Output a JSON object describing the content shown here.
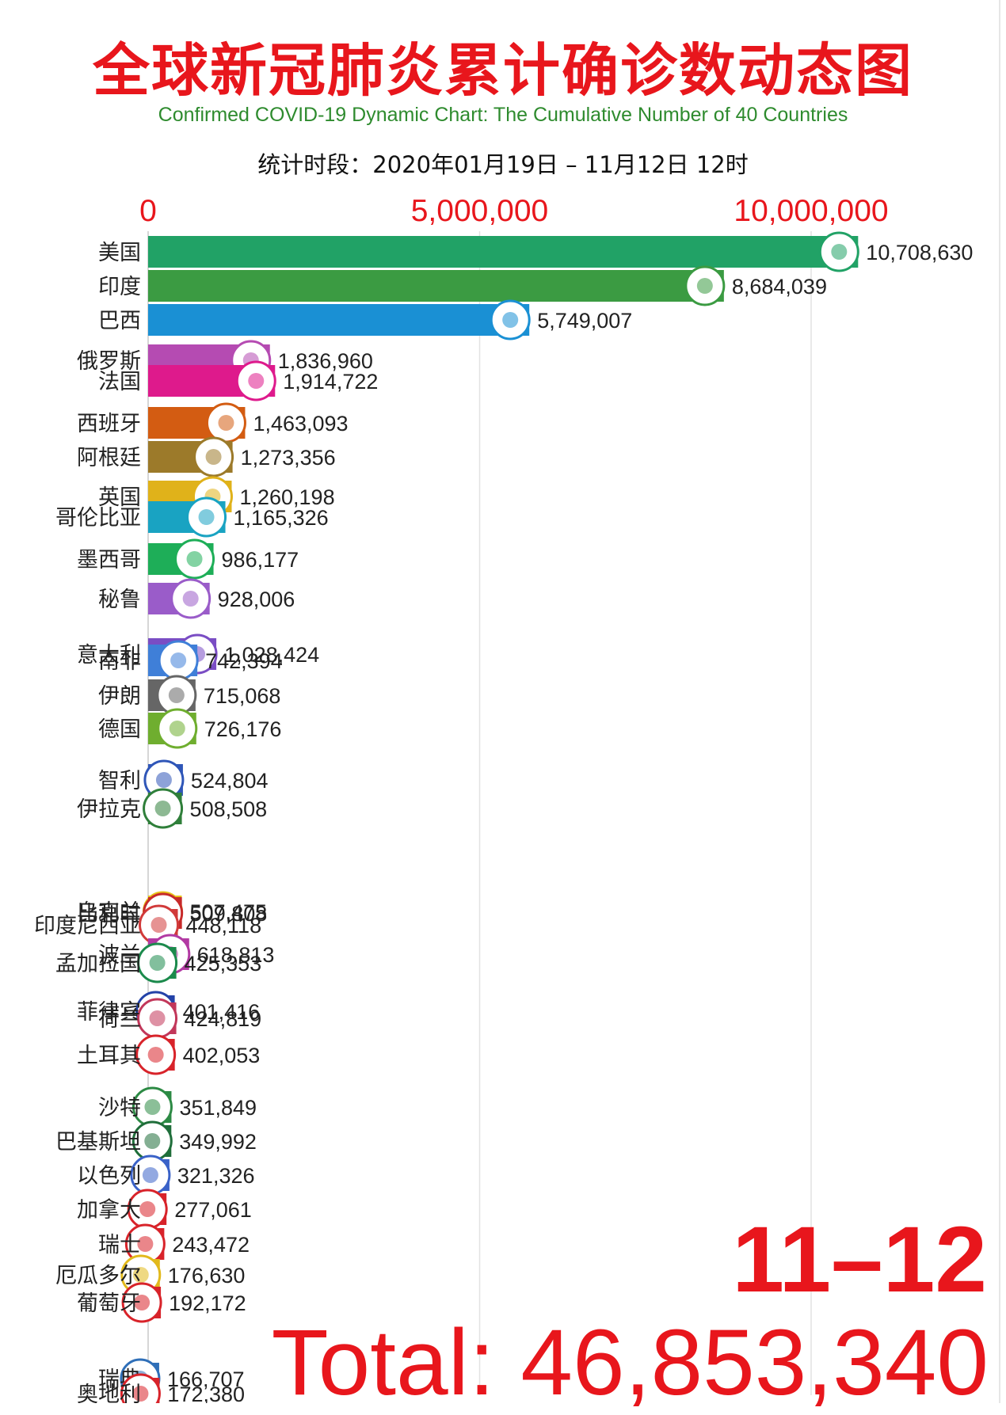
{
  "header": {
    "title": "全球新冠肺炎累计确诊数动态图",
    "subtitle": "Confirmed COVID-19 Dynamic Chart: The Cumulative Number of 40 Countries",
    "period": "统计时段：2020年01月19日 – 11月12日 12时"
  },
  "overlay": {
    "date": "11–12",
    "total": "Total: 46,853,340"
  },
  "chart_data": {
    "type": "bar",
    "orientation": "horizontal",
    "xlim": [
      0,
      11300000
    ],
    "xticks": [
      0,
      5000000,
      10000000
    ],
    "xtick_labels": [
      "0",
      "5,000,000",
      "10,000,000"
    ],
    "grid": true,
    "rows": [
      {
        "name": "美国",
        "value": 10708630,
        "label": "10,708,630",
        "color": "#21a266",
        "flag": "us-flag-icon"
      },
      {
        "name": "印度",
        "value": 8684039,
        "label": "8,684,039",
        "color": "#3b9b42",
        "flag": "india-flag-icon"
      },
      {
        "name": "巴西",
        "value": 5749007,
        "label": "5,749,007",
        "color": "#1a90d4",
        "flag": "brazil-flag-icon"
      },
      {
        "name": "俄罗斯",
        "value": 1836960,
        "label": "1,836,960",
        "color": "#b54bb2",
        "flag": "russia-flag-icon"
      },
      {
        "name": "法国",
        "value": 1914722,
        "label": "1,914,722",
        "color": "#de1a8c",
        "flag": "france-flag-icon"
      },
      {
        "name": "西班牙",
        "value": 1463093,
        "label": "1,463,093",
        "color": "#d35c12",
        "flag": "spain-flag-icon"
      },
      {
        "name": "阿根廷",
        "value": 1273356,
        "label": "1,273,356",
        "color": "#9c7a2a",
        "flag": "argentina-flag-icon"
      },
      {
        "name": "英国",
        "value": 1260198,
        "label": "1,260,198",
        "color": "#e0b21a",
        "flag": "uk-flag-icon"
      },
      {
        "name": "哥伦比亚",
        "value": 1165326,
        "label": "1,165,326",
        "color": "#19a3c2",
        "flag": "colombia-flag-icon"
      },
      {
        "name": "墨西哥",
        "value": 986177,
        "label": "986,177",
        "color": "#1eae58",
        "flag": "mexico-flag-icon"
      },
      {
        "name": "秘鲁",
        "value": 928006,
        "label": "928,006",
        "color": "#9a5cc9",
        "flag": "peru-flag-icon"
      },
      {
        "name": "意大利",
        "value": 1028424,
        "label": "1,028,424",
        "color": "#7a4dc4",
        "flag": "italy-flag-icon"
      },
      {
        "name": "南非",
        "value": 742394,
        "label": "742,394",
        "color": "#3f7fd8",
        "flag": "south-africa-flag-icon"
      },
      {
        "name": "伊朗",
        "value": 715068,
        "label": "715,068",
        "color": "#666666",
        "flag": "iran-flag-icon"
      },
      {
        "name": "德国",
        "value": 726176,
        "label": "726,176",
        "color": "#6fae2f",
        "flag": "germany-flag-icon"
      },
      {
        "name": "智利",
        "value": 524804,
        "label": "524,804",
        "color": "#2f56b8",
        "flag": "chile-flag-icon"
      },
      {
        "name": "伊拉克",
        "value": 508508,
        "label": "508,508",
        "color": "#2f7f3a",
        "flag": "iraq-flag-icon"
      },
      {
        "name": "乌克兰",
        "value": 507475,
        "label": "507,475",
        "color": "#e8c318",
        "flag": "ukraine-flag-icon"
      },
      {
        "name": "比利时",
        "value": 509808,
        "label": "509,808",
        "color": "#c72a2a",
        "flag": "belgium-flag-icon"
      },
      {
        "name": "印度尼西亚",
        "value": 448118,
        "label": "448,118",
        "color": "#d13a3a",
        "flag": "indonesia-flag-icon"
      },
      {
        "name": "波兰",
        "value": 618813,
        "label": "618,813",
        "color": "#b23aa3",
        "flag": "poland-flag-icon"
      },
      {
        "name": "孟加拉国",
        "value": 425353,
        "label": "425,353",
        "color": "#1b8a4c",
        "flag": "bangladesh-flag-icon"
      },
      {
        "name": "菲律宾",
        "value": 401416,
        "label": "401,416",
        "color": "#2342a8",
        "flag": "philippines-flag-icon"
      },
      {
        "name": "荷兰",
        "value": 424819,
        "label": "424,819",
        "color": "#c2375a",
        "flag": "netherlands-flag-icon"
      },
      {
        "name": "土耳其",
        "value": 402053,
        "label": "402,053",
        "color": "#d8232a",
        "flag": "turkey-flag-icon"
      },
      {
        "name": "沙特",
        "value": 351849,
        "label": "351,849",
        "color": "#2c8a44",
        "flag": "saudi-flag-icon"
      },
      {
        "name": "巴基斯坦",
        "value": 349992,
        "label": "349,992",
        "color": "#1f6e3a",
        "flag": "pakistan-flag-icon"
      },
      {
        "name": "以色列",
        "value": 321326,
        "label": "321,326",
        "color": "#3a62c8",
        "flag": "israel-flag-icon"
      },
      {
        "name": "加拿大",
        "value": 277061,
        "label": "277,061",
        "color": "#d8232a",
        "flag": "canada-flag-icon"
      },
      {
        "name": "瑞士",
        "value": 243472,
        "label": "243,472",
        "color": "#d8232a",
        "flag": "switzerland-flag-icon"
      },
      {
        "name": "厄瓜多尔",
        "value": 176630,
        "label": "176,630",
        "color": "#e2b91c",
        "flag": "ecuador-flag-icon"
      },
      {
        "name": "葡萄牙",
        "value": 192172,
        "label": "192,172",
        "color": "#d8232a",
        "flag": "portugal-flag-icon"
      },
      {
        "name": "瑞典",
        "value": 166707,
        "label": "166,707",
        "color": "#2f6fb8",
        "flag": "sweden-flag-icon"
      },
      {
        "name": "奥地利",
        "value": 172380,
        "label": "172,380",
        "color": "#d8232a",
        "flag": "austria-flag-icon"
      }
    ]
  }
}
